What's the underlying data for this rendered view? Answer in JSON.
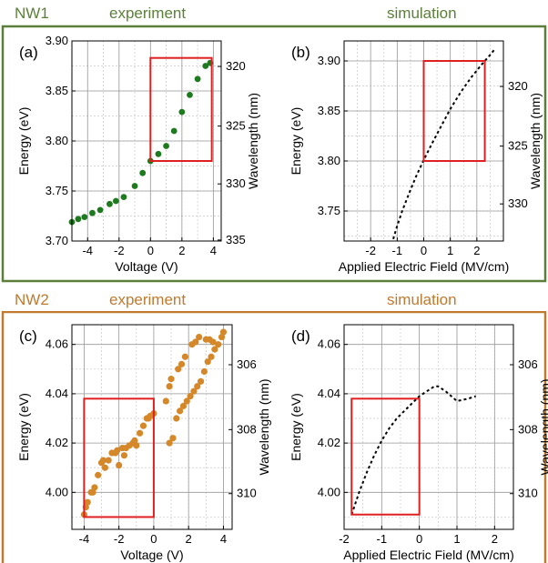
{
  "colors": {
    "nw1": "#5b7f3a",
    "nw2": "#c07a2f",
    "nw1_points": "#1e7a1e",
    "nw2_points": "#d4882a",
    "highlight": "#e02020",
    "sim_line": "#000000",
    "grid": "#999999"
  },
  "sections": [
    {
      "label": "NW1",
      "experiment_title": "experiment",
      "simulation_title": "simulation"
    },
    {
      "label": "NW2",
      "experiment_title": "experiment",
      "simulation_title": "simulation"
    }
  ],
  "chart_data": [
    {
      "panel": "(a)",
      "type": "scatter",
      "xlabel": "Voltage (V)",
      "ylabel": "Energy (eV)",
      "y2label": "Wavelength (nm)",
      "xlim": [
        -5,
        4.5
      ],
      "ylim": [
        3.7,
        3.9
      ],
      "xticks": [
        -4,
        -2,
        0,
        2,
        4
      ],
      "yticks": [
        3.7,
        3.75,
        3.8,
        3.85,
        3.9
      ],
      "y2ticks": [
        320,
        325,
        330,
        335
      ],
      "grid": true,
      "highlight_box": {
        "x": [
          0,
          3.9
        ],
        "y": [
          3.78,
          3.883
        ]
      },
      "series": [
        {
          "x": [
            -5.0,
            -4.6,
            -4.2,
            -3.7,
            -3.2,
            -2.6,
            -2.2,
            -1.7,
            -1.0,
            -0.5,
            0.0,
            0.5,
            1.0,
            1.5,
            2.0,
            2.5,
            3.0,
            3.5,
            3.8
          ],
          "y": [
            3.719,
            3.722,
            3.724,
            3.728,
            3.731,
            3.737,
            3.74,
            3.744,
            3.755,
            3.768,
            3.78,
            3.787,
            3.795,
            3.81,
            3.829,
            3.846,
            3.862,
            3.875,
            3.878
          ]
        }
      ]
    },
    {
      "panel": "(b)",
      "type": "line",
      "xlabel": "Applied Electric Field (MV/cm)",
      "ylabel": "Energy (eV)",
      "y2label": "Wavelength (nm)",
      "xlim": [
        -3,
        3
      ],
      "ylim": [
        3.72,
        3.92
      ],
      "xticks": [
        -2,
        -1,
        0,
        1,
        2
      ],
      "yticks": [
        3.75,
        3.8,
        3.85,
        3.9
      ],
      "y2ticks": [
        320,
        325,
        330
      ],
      "grid": true,
      "line_style": "dashed",
      "highlight_box": {
        "x": [
          0,
          2.3
        ],
        "y": [
          3.8,
          3.9
        ]
      },
      "series": [
        {
          "x": [
            -1.15,
            -1.0,
            -0.8,
            -0.5,
            -0.3,
            0.0,
            0.3,
            0.6,
            1.0,
            1.4,
            1.8,
            2.2,
            2.5,
            2.65
          ],
          "y": [
            3.722,
            3.735,
            3.751,
            3.771,
            3.784,
            3.801,
            3.817,
            3.832,
            3.852,
            3.869,
            3.884,
            3.897,
            3.906,
            3.911
          ]
        }
      ]
    },
    {
      "panel": "(c)",
      "type": "scatter",
      "xlabel": "Voltage (V)",
      "ylabel": "Energy (eV)",
      "y2label": "Wavelength (nm)",
      "xlim": [
        -4.7,
        4.5
      ],
      "ylim": [
        3.985,
        4.068
      ],
      "xticks": [
        -4,
        -2,
        0,
        2,
        4
      ],
      "yticks": [
        4.0,
        4.02,
        4.04,
        4.06
      ],
      "y2ticks": [
        306,
        308,
        310
      ],
      "grid": true,
      "highlight_box": {
        "x": [
          -4.0,
          0.0
        ],
        "y": [
          3.99,
          4.038
        ]
      },
      "series": [
        {
          "x": [
            -4.0,
            -3.8,
            -3.6,
            -3.4,
            -3.2,
            -3.0,
            -2.9,
            -2.6,
            -2.4,
            -2.2,
            -2.0,
            -1.8,
            -1.6,
            -1.4,
            -1.2,
            -1.0,
            -0.8,
            -0.6,
            -0.4,
            -0.2,
            0.0,
            -3.9,
            -3.5,
            -2.8,
            -2.1,
            -1.7,
            -1.1,
            -0.3,
            0.7,
            0.9,
            1.1,
            1.3,
            1.5,
            1.7,
            1.9,
            2.1,
            2.3,
            2.5,
            2.7,
            2.9,
            3.1,
            3.3,
            3.5,
            3.7,
            3.9,
            4.0,
            1.0,
            1.4,
            1.8,
            2.2,
            2.6,
            3.0,
            3.4,
            0.9,
            1.6,
            2.4,
            3.2
          ],
          "y": [
            3.991,
            3.996,
            4.0,
            4.002,
            4.007,
            4.012,
            4.013,
            4.013,
            4.016,
            4.016,
            4.011,
            4.018,
            4.018,
            4.019,
            4.02,
            4.019,
            4.024,
            4.027,
            4.03,
            4.031,
            4.032,
            3.994,
            4.0,
            4.01,
            4.017,
            4.015,
            4.021,
            4.03,
            4.037,
            4.02,
            4.022,
            4.03,
            4.033,
            4.035,
            4.037,
            4.039,
            4.041,
            4.043,
            4.045,
            4.049,
            4.053,
            4.055,
            4.058,
            4.06,
            4.063,
            4.065,
            4.046,
            4.05,
            4.055,
            4.06,
            4.063,
            4.062,
            4.061,
            4.043,
            4.052,
            4.061,
            4.062
          ]
        }
      ]
    },
    {
      "panel": "(d)",
      "type": "line",
      "xlabel": "Applied Electric Field (MV/cm)",
      "ylabel": "Energy (eV)",
      "y2label": "Wavelength (nm)",
      "xlim": [
        -2,
        2.5
      ],
      "ylim": [
        3.985,
        4.068
      ],
      "xticks": [
        -2,
        -1,
        0,
        1,
        2
      ],
      "yticks": [
        4.0,
        4.02,
        4.04,
        4.06
      ],
      "y2ticks": [
        306,
        308,
        310
      ],
      "grid": true,
      "line_style": "dashed",
      "highlight_box": {
        "x": [
          -1.8,
          0.0
        ],
        "y": [
          3.991,
          4.038
        ]
      },
      "series": [
        {
          "x": [
            -1.8,
            -1.6,
            -1.4,
            -1.2,
            -1.0,
            -0.8,
            -0.6,
            -0.4,
            -0.2,
            0.0,
            0.2,
            0.4,
            0.5,
            0.7,
            1.0,
            1.3,
            1.5
          ],
          "y": [
            3.991,
            4.0,
            4.008,
            4.015,
            4.021,
            4.026,
            4.03,
            4.033,
            4.036,
            4.039,
            4.041,
            4.043,
            4.043,
            4.041,
            4.037,
            4.038,
            4.039
          ]
        }
      ]
    }
  ]
}
